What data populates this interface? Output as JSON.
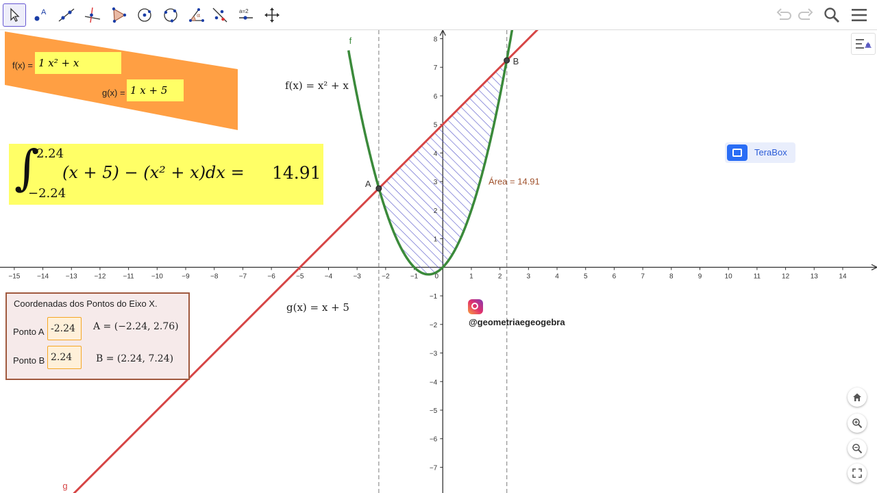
{
  "toolbar": {
    "tools": [
      {
        "name": "move-tool",
        "selected": true
      },
      {
        "name": "point-tool",
        "point_label": "A"
      },
      {
        "name": "line-tool"
      },
      {
        "name": "perpendicular-line-tool"
      },
      {
        "name": "polygon-tool"
      },
      {
        "name": "circle-tool"
      },
      {
        "name": "circle-through-points-tool"
      },
      {
        "name": "angle-tool",
        "angle_label": "α"
      },
      {
        "name": "reflect-tool"
      },
      {
        "name": "slider-tool",
        "slider_label": "a=2"
      },
      {
        "name": "move-graphics-view-tool"
      }
    ],
    "right_icons": [
      "undo-icon",
      "redo-icon",
      "search-icon",
      "menu-icon"
    ]
  },
  "panels": {
    "function_inputs": {
      "f_label": "f(x) =",
      "f_value": "1 x² + x",
      "g_label": "g(x) =",
      "g_value": "1 x + 5"
    },
    "integral": {
      "upper": "2.24",
      "lower": "−2.24",
      "integrand": "(x + 5) − (x² + x)dx =",
      "result": "14.91"
    },
    "coordinates": {
      "title": "Coordenadas dos Pontos do Eixo X.",
      "point_a_label": "Ponto A",
      "point_a_value": "-2.24",
      "point_a_coords": "A = (−2.24, 2.76)",
      "point_b_label": "Ponto B",
      "point_b_value": "2.24",
      "point_b_coords": "B = (2.24, 7.24)"
    }
  },
  "labels": {
    "f_expression": "f(x) = x² + x",
    "g_expression": "g(x) = x + 5",
    "area": "Área = 14.91",
    "point_a": "A",
    "point_b": "B",
    "f_curve_label": "f",
    "g_line_label": "g",
    "instagram": "@geometriaegeogebra",
    "terabox": "TeraBox"
  },
  "graph": {
    "x_range": [
      -15.5,
      15.2
    ],
    "y_range": [
      -7.9,
      8.3
    ],
    "x_ticks": [
      -15,
      -14,
      -13,
      -12,
      -11,
      -10,
      -9,
      -8,
      -7,
      -6,
      -5,
      -4,
      -3,
      -2,
      -1,
      0,
      1,
      2,
      3,
      4,
      5,
      6,
      7,
      8,
      9,
      10,
      11,
      12,
      13,
      14
    ],
    "y_ticks": [
      -7,
      -6,
      -5,
      -4,
      -3,
      -2,
      -1,
      1,
      2,
      3,
      4,
      5,
      6,
      7,
      8
    ],
    "f": "x^2 + x",
    "g": "x + 5",
    "intersection_a": [
      -2.24,
      2.76
    ],
    "intersection_b": [
      2.24,
      7.24
    ],
    "colors": {
      "f": "#3b8a3b",
      "g": "#d64545",
      "hatch": "#5050c8",
      "area_label": "#a0522d"
    }
  },
  "zoom_controls": [
    "home-icon",
    "zoom-in-icon",
    "zoom-out-icon",
    "fullscreen-icon"
  ]
}
